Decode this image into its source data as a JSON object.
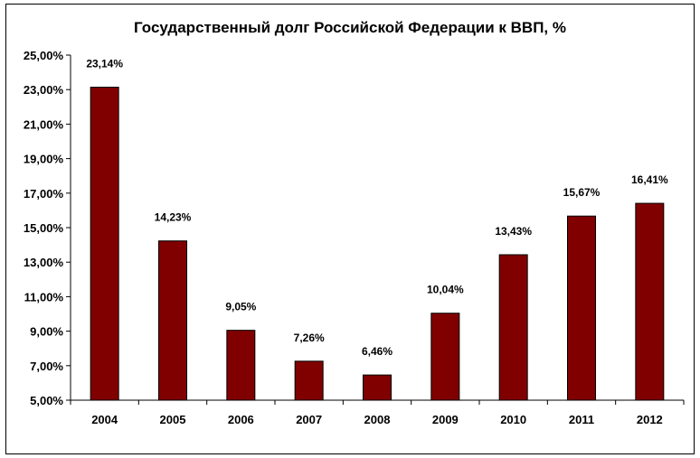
{
  "chart_data": {
    "type": "bar",
    "title": "Государственный долг Российской Федерации к ВВП, %",
    "categories": [
      "2004",
      "2005",
      "2006",
      "2007",
      "2008",
      "2009",
      "2010",
      "2011",
      "2012"
    ],
    "values": [
      23.14,
      14.23,
      9.05,
      7.26,
      6.46,
      10.04,
      13.43,
      15.67,
      16.41
    ],
    "value_labels": [
      "23,14%",
      "14,23%",
      "9,05%",
      "7,26%",
      "6,46%",
      "10,04%",
      "13,43%",
      "15,67%",
      "16,41%"
    ],
    "y_ticks": [
      5,
      7,
      9,
      11,
      13,
      15,
      17,
      19,
      21,
      23,
      25
    ],
    "y_tick_labels": [
      "5,00%",
      "7,00%",
      "9,00%",
      "11,00%",
      "13,00%",
      "15,00%",
      "17,00%",
      "19,00%",
      "21,00%",
      "23,00%",
      "25,00%"
    ],
    "ylim": [
      5,
      25
    ],
    "xlabel": "",
    "ylabel": "",
    "bar_color": "#800000",
    "grid": false,
    "legend": "none"
  }
}
